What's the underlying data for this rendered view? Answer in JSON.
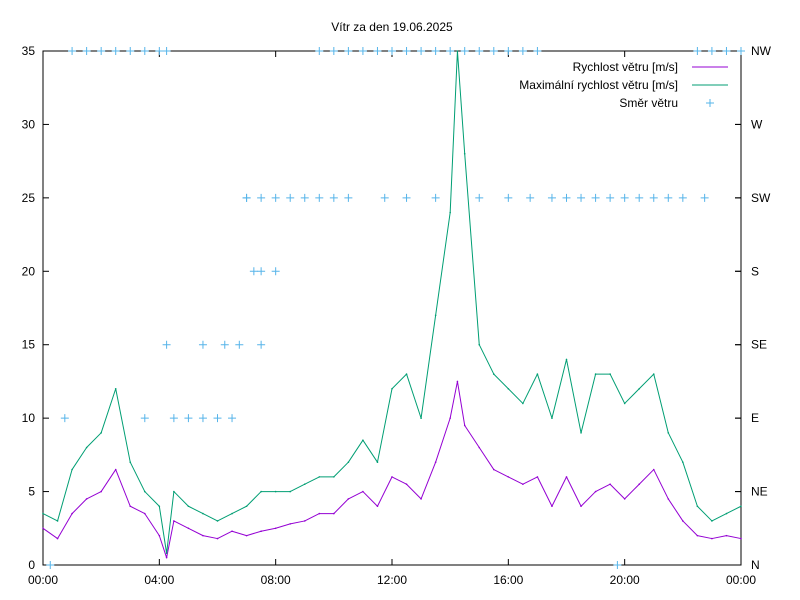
{
  "chart_data": {
    "type": "line",
    "title": "Vítr za den 19.06.2025",
    "xlabel": "",
    "ylabel": "",
    "x_ticks": [
      "00:00",
      "04:00",
      "08:00",
      "12:00",
      "16:00",
      "20:00",
      "00:00"
    ],
    "x_range_hours": [
      0,
      24
    ],
    "y_ticks": [
      0,
      5,
      10,
      15,
      20,
      25,
      30,
      35
    ],
    "ylim": [
      0,
      35
    ],
    "y2_ticks": [
      "N",
      "NE",
      "E",
      "SE",
      "S",
      "SW",
      "W",
      "NW"
    ],
    "y2_range_deg": [
      0,
      315
    ],
    "grid": false,
    "legend_position": "top-right",
    "colors": {
      "speed": "#9400d3",
      "gust": "#009e73",
      "direction": "#56b4e9"
    },
    "series": [
      {
        "name": "Rychlost větru [m/s]",
        "kind": "line",
        "x_hours": [
          0,
          0.5,
          1,
          1.5,
          2,
          2.5,
          3,
          3.5,
          4,
          4.25,
          4.5,
          5,
          5.5,
          6,
          6.5,
          7,
          7.5,
          8,
          8.5,
          9,
          9.5,
          10,
          10.5,
          11,
          11.5,
          12,
          12.5,
          13,
          13.5,
          14,
          14.25,
          14.5,
          15,
          15.5,
          16,
          16.5,
          17,
          17.5,
          18,
          18.5,
          19,
          19.5,
          20,
          20.5,
          21,
          21.5,
          22,
          22.5,
          23,
          23.5,
          24
        ],
        "values": [
          2.5,
          1.8,
          3.5,
          4.5,
          5.0,
          6.5,
          4.0,
          3.5,
          2.0,
          0.5,
          3.0,
          2.5,
          2.0,
          1.8,
          2.3,
          2.0,
          2.3,
          2.5,
          2.8,
          3.0,
          3.5,
          3.5,
          4.5,
          5.0,
          4.0,
          6.0,
          5.5,
          4.5,
          7.0,
          10.0,
          12.5,
          9.5,
          8.0,
          6.5,
          6.0,
          5.5,
          6.0,
          4.0,
          6.0,
          4.0,
          5.0,
          5.5,
          4.5,
          5.5,
          6.5,
          4.5,
          3.0,
          2.0,
          1.8,
          2.0,
          1.8
        ]
      },
      {
        "name": "Maximální rychlost větru [m/s]",
        "kind": "line",
        "x_hours": [
          0,
          0.5,
          1,
          1.5,
          2,
          2.5,
          3,
          3.5,
          4,
          4.25,
          4.5,
          5,
          5.5,
          6,
          6.5,
          7,
          7.5,
          8,
          8.5,
          9,
          9.5,
          10,
          10.5,
          11,
          11.5,
          12,
          12.5,
          13,
          13.5,
          14,
          14.25,
          14.5,
          15,
          15.5,
          16,
          16.5,
          17,
          17.5,
          18,
          18.5,
          19,
          19.5,
          20,
          20.5,
          21,
          21.5,
          22,
          22.5,
          23,
          23.5,
          24
        ],
        "values": [
          3.5,
          3.0,
          6.5,
          8.0,
          9.0,
          12.0,
          7.0,
          5.0,
          4.0,
          0.8,
          5.0,
          4.0,
          3.5,
          3.0,
          3.5,
          4.0,
          5.0,
          5.0,
          5.0,
          5.5,
          6.0,
          6.0,
          7.0,
          8.5,
          7.0,
          12.0,
          13.0,
          10.0,
          17.0,
          24.0,
          35.0,
          28.0,
          15.0,
          13.0,
          12.0,
          11.0,
          13.0,
          10.0,
          14.0,
          9.0,
          13.0,
          13.0,
          11.0,
          12.0,
          13.0,
          9.0,
          7.0,
          4.0,
          3.0,
          3.5,
          4.0
        ]
      },
      {
        "name": "Směr větru",
        "kind": "points",
        "x_hours": [
          0.25,
          0.75,
          1.0,
          1.5,
          2.0,
          2.5,
          3.0,
          3.5,
          4.0,
          4.25,
          3.5,
          4.5,
          5.0,
          5.5,
          6.0,
          6.5,
          4.25,
          5.5,
          6.25,
          6.75,
          7.5,
          7.0,
          7.25,
          7.5,
          8.0,
          7.0,
          7.5,
          8.0,
          8.5,
          9.0,
          9.5,
          10.0,
          10.5,
          9.5,
          10.0,
          10.5,
          11.0,
          11.5,
          12.0,
          12.5,
          13.0,
          13.5,
          14.0,
          14.5,
          15.0,
          15.5,
          16.0,
          16.5,
          17.0,
          11.75,
          12.5,
          13.5,
          15.0,
          16.0,
          16.75,
          17.5,
          18.0,
          18.5,
          19.0,
          19.5,
          20.0,
          20.5,
          21.0,
          21.5,
          22.0,
          22.5,
          23.0,
          23.5,
          24.0,
          19.75,
          22.75
        ],
        "values": [
          0,
          90,
          315,
          315,
          315,
          315,
          315,
          315,
          315,
          315,
          90,
          90,
          90,
          90,
          90,
          90,
          135,
          135,
          135,
          135,
          135,
          225,
          180,
          180,
          180,
          225,
          225,
          225,
          225,
          225,
          225,
          225,
          225,
          315,
          315,
          315,
          315,
          315,
          315,
          315,
          315,
          315,
          315,
          315,
          315,
          315,
          315,
          315,
          315,
          225,
          225,
          225,
          225,
          225,
          225,
          225,
          225,
          225,
          225,
          225,
          225,
          225,
          225,
          225,
          225,
          315,
          315,
          315,
          315,
          0,
          225
        ]
      }
    ]
  }
}
